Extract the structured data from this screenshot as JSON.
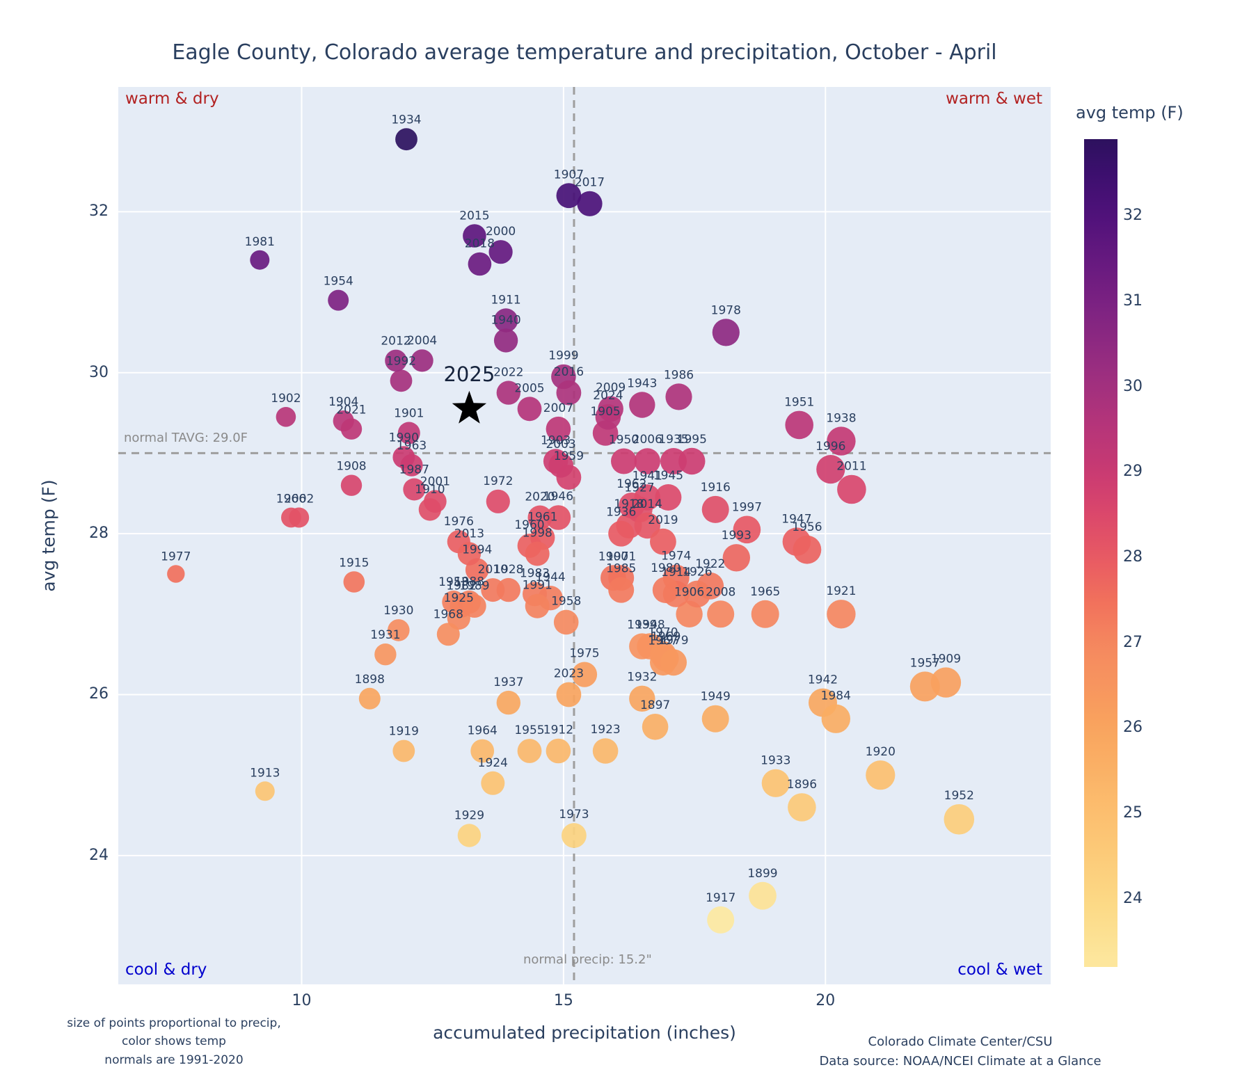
{
  "title": "Eagle County, Colorado average temperature and precipitation, October - April",
  "annotations": {
    "warm_dry": "warm & dry",
    "warm_wet": "warm & wet",
    "cool_dry": "cool & dry",
    "cool_wet": "cool & wet",
    "normal_tavg_label": "normal TAVG: 29.0F",
    "normal_precip_label": "normal precip: 15.2\"",
    "highlight_label": "2025"
  },
  "footnotes": {
    "left": "size of points proportional to precip,\ncolor shows temp\nnormals are 1991-2020",
    "right": "Colorado Climate Center/CSU\nData source: NOAA/NCEI Climate at a Glance"
  },
  "colors": {
    "plot_bg": "#e5ecf6",
    "grid": "#ffffff",
    "dashed_line": "#9e9e9e",
    "title_text": "#2a3f5f",
    "point_label": "#2a3f5f",
    "warm_label": "#b22222",
    "cool_label": "#0000cd",
    "normal_label": "#8a8a8a",
    "star": "#000000"
  },
  "chart_data": {
    "type": "scatter",
    "title": "Eagle County, Colorado average temperature and precipitation, October - April",
    "x_label": "accumulated precipitation (inches)",
    "y_label": "avg temp (F)",
    "x_ticks": [
      10,
      15,
      20
    ],
    "y_ticks": [
      24,
      26,
      28,
      30,
      32
    ],
    "x_range": [
      6.5,
      24.3
    ],
    "y_range": [
      22.4,
      33.55
    ],
    "normal_precip": 15.2,
    "normal_tavg": 29.0,
    "size_note": "marker size proportional to precip",
    "color_note": "marker color mapped to temp",
    "points_format": [
      "year",
      "precip_inches",
      "avg_temp_f"
    ],
    "points": [
      [
        1896,
        19.55,
        24.6
      ],
      [
        1897,
        16.75,
        25.6
      ],
      [
        1898,
        11.3,
        25.95
      ],
      [
        1899,
        18.8,
        23.5
      ],
      [
        1900,
        15.95,
        27.45
      ],
      [
        1901,
        12.05,
        29.25
      ],
      [
        1902,
        9.7,
        29.45
      ],
      [
        1903,
        14.85,
        28.9
      ],
      [
        1904,
        10.8,
        29.4
      ],
      [
        1905,
        15.8,
        29.25
      ],
      [
        1906,
        17.4,
        27.0
      ],
      [
        1907,
        15.1,
        32.2
      ],
      [
        1908,
        10.95,
        28.6
      ],
      [
        1909,
        22.3,
        26.15
      ],
      [
        1910,
        12.45,
        28.3
      ],
      [
        1911,
        13.9,
        30.65
      ],
      [
        1912,
        14.9,
        25.3
      ],
      [
        1913,
        9.3,
        24.8
      ],
      [
        1914,
        17.15,
        27.25
      ],
      [
        1915,
        11.0,
        27.4
      ],
      [
        1916,
        17.9,
        28.3
      ],
      [
        1917,
        18.0,
        23.2
      ],
      [
        1918,
        16.25,
        28.1
      ],
      [
        1919,
        11.95,
        25.3
      ],
      [
        1920,
        21.05,
        25.0
      ],
      [
        1921,
        20.3,
        27.0
      ],
      [
        1922,
        17.8,
        27.35
      ],
      [
        1923,
        15.8,
        25.3
      ],
      [
        1924,
        13.65,
        24.9
      ],
      [
        1925,
        13.0,
        26.95
      ],
      [
        1926,
        17.55,
        27.25
      ],
      [
        1927,
        16.45,
        28.3
      ],
      [
        1928,
        13.95,
        27.3
      ],
      [
        1929,
        13.2,
        24.25
      ],
      [
        1930,
        11.85,
        26.8
      ],
      [
        1931,
        11.6,
        26.5
      ],
      [
        1932,
        16.5,
        25.95
      ],
      [
        1933,
        19.05,
        24.9
      ],
      [
        1934,
        12.0,
        32.9
      ],
      [
        1935,
        17.1,
        28.9
      ],
      [
        1936,
        16.1,
        28.0
      ],
      [
        1937,
        13.95,
        25.9
      ],
      [
        1938,
        20.3,
        29.15
      ],
      [
        1939,
        16.5,
        26.6
      ],
      [
        1940,
        13.9,
        30.4
      ],
      [
        1941,
        16.6,
        28.45
      ],
      [
        1942,
        19.95,
        25.9
      ],
      [
        1943,
        16.5,
        29.6
      ],
      [
        1944,
        14.75,
        27.2
      ],
      [
        1945,
        17.0,
        28.45
      ],
      [
        1946,
        14.9,
        28.2
      ],
      [
        1947,
        19.45,
        27.9
      ],
      [
        1948,
        16.65,
        26.6
      ],
      [
        1949,
        17.9,
        25.7
      ],
      [
        1950,
        16.15,
        28.9
      ],
      [
        1951,
        19.5,
        29.35
      ],
      [
        1952,
        22.55,
        24.45
      ],
      [
        1953,
        12.9,
        27.15
      ],
      [
        1954,
        10.7,
        30.9
      ],
      [
        1955,
        14.35,
        25.3
      ],
      [
        1956,
        19.65,
        27.8
      ],
      [
        1957,
        21.9,
        26.1
      ],
      [
        1958,
        15.05,
        26.9
      ],
      [
        1959,
        15.1,
        28.7
      ],
      [
        1960,
        14.35,
        27.85
      ],
      [
        1961,
        14.6,
        27.95
      ],
      [
        1962,
        16.3,
        28.35
      ],
      [
        1963,
        12.1,
        28.85
      ],
      [
        1964,
        13.45,
        25.3
      ],
      [
        1965,
        18.85,
        27.0
      ],
      [
        1966,
        9.8,
        28.2
      ],
      [
        1967,
        16.9,
        26.4
      ],
      [
        1968,
        12.8,
        26.75
      ],
      [
        1969,
        16.95,
        26.45
      ],
      [
        1970,
        16.9,
        26.5
      ],
      [
        1971,
        16.1,
        27.45
      ],
      [
        1972,
        13.75,
        28.4
      ],
      [
        1973,
        15.2,
        24.25
      ],
      [
        1974,
        17.15,
        27.45
      ],
      [
        1975,
        15.4,
        26.25
      ],
      [
        1976,
        13.0,
        27.9
      ],
      [
        1977,
        7.6,
        27.5
      ],
      [
        1978,
        18.1,
        30.5
      ],
      [
        1979,
        17.1,
        26.4
      ],
      [
        1980,
        16.95,
        27.3
      ],
      [
        1981,
        9.2,
        31.4
      ],
      [
        1982,
        13.05,
        27.1
      ],
      [
        1983,
        14.45,
        27.25
      ],
      [
        1984,
        20.2,
        25.7
      ],
      [
        1985,
        16.1,
        27.3
      ],
      [
        1986,
        17.2,
        29.7
      ],
      [
        1987,
        12.15,
        28.55
      ],
      [
        1988,
        13.2,
        27.15
      ],
      [
        1989,
        13.3,
        27.1
      ],
      [
        1990,
        11.95,
        28.95
      ],
      [
        1991,
        14.5,
        27.1
      ],
      [
        1992,
        11.9,
        29.9
      ],
      [
        1993,
        18.3,
        27.7
      ],
      [
        1994,
        13.35,
        27.55
      ],
      [
        1995,
        17.45,
        28.9
      ],
      [
        1996,
        20.1,
        28.8
      ],
      [
        1997,
        18.5,
        28.05
      ],
      [
        1998,
        14.5,
        27.75
      ],
      [
        1999,
        15.0,
        29.95
      ],
      [
        2000,
        13.8,
        31.5
      ],
      [
        2001,
        12.55,
        28.4
      ],
      [
        2002,
        9.95,
        28.2
      ],
      [
        2003,
        14.95,
        28.85
      ],
      [
        2004,
        12.3,
        30.15
      ],
      [
        2005,
        14.35,
        29.55
      ],
      [
        2006,
        16.6,
        28.9
      ],
      [
        2007,
        14.9,
        29.3
      ],
      [
        2008,
        18.0,
        27.0
      ],
      [
        2009,
        15.9,
        29.55
      ],
      [
        2010,
        13.65,
        27.3
      ],
      [
        2011,
        20.5,
        28.55
      ],
      [
        2012,
        11.8,
        30.15
      ],
      [
        2013,
        13.2,
        27.75
      ],
      [
        2014,
        16.6,
        28.1
      ],
      [
        2015,
        13.3,
        31.7
      ],
      [
        2016,
        15.1,
        29.75
      ],
      [
        2017,
        15.5,
        32.1
      ],
      [
        2018,
        13.4,
        31.35
      ],
      [
        2019,
        16.9,
        27.9
      ],
      [
        2020,
        14.55,
        28.2
      ],
      [
        2021,
        10.95,
        29.3
      ],
      [
        2022,
        13.95,
        29.75
      ],
      [
        2023,
        15.1,
        26.0
      ],
      [
        2024,
        15.85,
        29.45
      ]
    ],
    "highlight": {
      "year": "2025",
      "precip": 13.2,
      "temp": 29.55,
      "marker": "star"
    },
    "colormap": [
      [
        23.0,
        "#fdeca6"
      ],
      [
        24.0,
        "#fcd884"
      ],
      [
        25.0,
        "#fcbf6f"
      ],
      [
        26.0,
        "#f9a45e"
      ],
      [
        27.0,
        "#f5875f"
      ],
      [
        27.5,
        "#f1705c"
      ],
      [
        28.0,
        "#e85a63"
      ],
      [
        28.5,
        "#db486b"
      ],
      [
        29.0,
        "#c93a72"
      ],
      [
        29.5,
        "#b73579"
      ],
      [
        30.0,
        "#a2307e"
      ],
      [
        30.5,
        "#8e2981"
      ],
      [
        31.0,
        "#7a2182"
      ],
      [
        31.5,
        "#65197f"
      ],
      [
        32.0,
        "#50127b"
      ],
      [
        32.5,
        "#3c0f6e"
      ],
      [
        33.0,
        "#29115a"
      ]
    ],
    "colorbar": {
      "title": "avg temp (F)",
      "ticks": [
        24,
        25,
        26,
        27,
        28,
        29,
        30,
        31,
        32
      ],
      "range": [
        23.2,
        32.9
      ],
      "position": "right"
    },
    "legend_position": "none",
    "grid": true
  }
}
